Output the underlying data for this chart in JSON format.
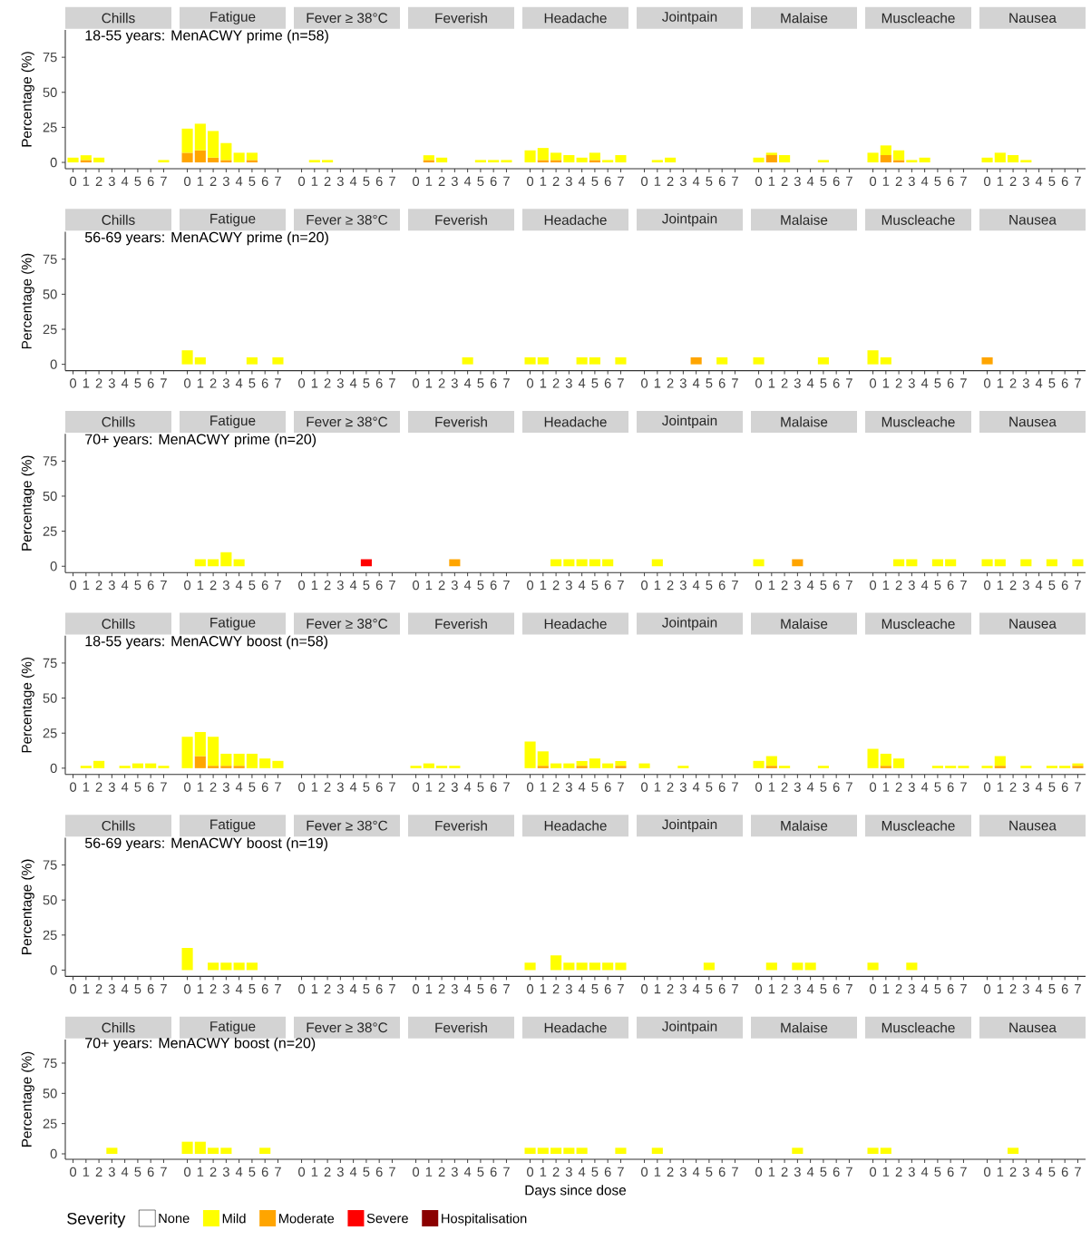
{
  "chart_data": [
    {
      "type": "bar",
      "stacked": true,
      "title": "18-55 years: MenACWY prime (n=58)",
      "ylabel": "Percentage (%)",
      "annotations": [
        "Chills",
        "Fatigue",
        "Fever ≥ 38°C",
        "Feverish",
        "Headache",
        "Jointpain",
        "Malaise",
        "Muscleache",
        "Nausea"
      ],
      "categories": [
        "0",
        "1",
        "2",
        "3",
        "4",
        "5",
        "6",
        "7",
        "0",
        "1",
        "2",
        "3",
        "4",
        "5",
        "6",
        "7",
        "0",
        "1",
        "2",
        "3",
        "4",
        "5",
        "6",
        "7",
        "0",
        "1",
        "2",
        "3",
        "4",
        "5",
        "6",
        "7",
        "0",
        "1",
        "2",
        "3",
        "4",
        "5",
        "6",
        "7",
        "0",
        "1",
        "2",
        "3",
        "4",
        "5",
        "6",
        "7",
        "0",
        "1",
        "2",
        "3",
        "4",
        "5",
        "6",
        "7",
        "0",
        "1",
        "2",
        "3",
        "4",
        "5",
        "6",
        "7",
        "0",
        "1",
        "2",
        "3",
        "4",
        "5",
        "6",
        "7"
      ],
      "ylim": [
        -4.5,
        94.5
      ],
      "yticks": [
        0,
        25,
        50,
        75
      ],
      "series": [
        {
          "color": "#ffa500",
          "values": [
            null,
            1.7,
            null,
            null,
            null,
            null,
            null,
            null,
            6.9,
            8.6,
            3.4,
            1.7,
            null,
            1.7,
            null,
            null,
            null,
            null,
            null,
            null,
            null,
            null,
            null,
            null,
            null,
            1.7,
            null,
            null,
            null,
            null,
            null,
            null,
            null,
            1.7,
            1.7,
            null,
            null,
            1.7,
            null,
            null,
            null,
            null,
            null,
            null,
            null,
            null,
            null,
            null,
            null,
            5.2,
            null,
            null,
            null,
            null,
            null,
            null,
            null,
            5.2,
            1.7,
            null,
            null,
            null,
            null,
            null,
            null,
            null,
            null,
            null,
            null,
            null,
            null,
            null
          ]
        },
        {
          "color": "#ffff00",
          "values": [
            3.4,
            3.4,
            3.4,
            null,
            null,
            null,
            null,
            1.7,
            17.2,
            19.0,
            19.0,
            12.1,
            6.9,
            5.2,
            null,
            null,
            null,
            1.7,
            1.7,
            null,
            null,
            null,
            null,
            null,
            null,
            3.4,
            3.4,
            null,
            null,
            1.7,
            1.7,
            1.7,
            8.6,
            8.6,
            5.2,
            5.2,
            3.4,
            5.2,
            1.7,
            5.2,
            null,
            1.7,
            3.4,
            null,
            null,
            null,
            null,
            null,
            3.4,
            1.7,
            5.2,
            null,
            null,
            1.7,
            null,
            null,
            6.9,
            6.9,
            6.9,
            1.7,
            3.4,
            null,
            null,
            null,
            3.4,
            6.9,
            5.2,
            1.7,
            null,
            null,
            null,
            null
          ]
        }
      ]
    },
    {
      "type": "bar",
      "stacked": true,
      "title": "56-69 years: MenACWY prime (n=20)",
      "ylabel": "Percentage (%)",
      "annotations": [
        "Chills",
        "Fatigue",
        "Fever ≥ 38°C",
        "Feverish",
        "Headache",
        "Jointpain",
        "Malaise",
        "Muscleache",
        "Nausea"
      ],
      "categories": [
        "0",
        "1",
        "2",
        "3",
        "4",
        "5",
        "6",
        "7",
        "0",
        "1",
        "2",
        "3",
        "4",
        "5",
        "6",
        "7",
        "0",
        "1",
        "2",
        "3",
        "4",
        "5",
        "6",
        "7",
        "0",
        "1",
        "2",
        "3",
        "4",
        "5",
        "6",
        "7",
        "0",
        "1",
        "2",
        "3",
        "4",
        "5",
        "6",
        "7",
        "0",
        "1",
        "2",
        "3",
        "4",
        "5",
        "6",
        "7",
        "0",
        "1",
        "2",
        "3",
        "4",
        "5",
        "6",
        "7",
        "0",
        "1",
        "2",
        "3",
        "4",
        "5",
        "6",
        "7",
        "0",
        "1",
        "2",
        "3",
        "4",
        "5",
        "6",
        "7"
      ],
      "ylim": [
        -4.5,
        94.5
      ],
      "yticks": [
        0,
        25,
        50,
        75
      ],
      "series": [
        {
          "color": "#ffa500",
          "values": [
            null,
            null,
            null,
            null,
            null,
            null,
            null,
            null,
            null,
            null,
            null,
            null,
            null,
            null,
            null,
            null,
            null,
            null,
            null,
            null,
            null,
            null,
            null,
            null,
            null,
            null,
            null,
            null,
            null,
            null,
            null,
            null,
            null,
            null,
            null,
            null,
            null,
            null,
            null,
            null,
            null,
            null,
            null,
            null,
            5,
            null,
            null,
            null,
            null,
            null,
            null,
            null,
            null,
            null,
            null,
            null,
            null,
            null,
            null,
            null,
            null,
            null,
            null,
            null,
            5,
            null,
            null,
            null,
            null,
            null,
            null,
            null
          ]
        },
        {
          "color": "#ffff00",
          "values": [
            null,
            null,
            null,
            null,
            null,
            null,
            null,
            null,
            10,
            5,
            null,
            null,
            null,
            5,
            null,
            5,
            null,
            null,
            null,
            null,
            null,
            null,
            null,
            null,
            null,
            null,
            null,
            null,
            5,
            null,
            null,
            null,
            5,
            5,
            null,
            null,
            5,
            5,
            null,
            5,
            null,
            null,
            null,
            null,
            null,
            null,
            5,
            null,
            5,
            null,
            null,
            null,
            null,
            5,
            null,
            null,
            10,
            5,
            null,
            null,
            null,
            null,
            null,
            null,
            null,
            null,
            null,
            null,
            null,
            null,
            null,
            null
          ]
        }
      ]
    },
    {
      "type": "bar",
      "stacked": true,
      "title": "70+ years: MenACWY prime (n=20)",
      "ylabel": "Percentage (%)",
      "annotations": [
        "Chills",
        "Fatigue",
        "Fever ≥ 38°C",
        "Feverish",
        "Headache",
        "Jointpain",
        "Malaise",
        "Muscleache",
        "Nausea"
      ],
      "categories": [
        "0",
        "1",
        "2",
        "3",
        "4",
        "5",
        "6",
        "7",
        "0",
        "1",
        "2",
        "3",
        "4",
        "5",
        "6",
        "7",
        "0",
        "1",
        "2",
        "3",
        "4",
        "5",
        "6",
        "7",
        "0",
        "1",
        "2",
        "3",
        "4",
        "5",
        "6",
        "7",
        "0",
        "1",
        "2",
        "3",
        "4",
        "5",
        "6",
        "7",
        "0",
        "1",
        "2",
        "3",
        "4",
        "5",
        "6",
        "7",
        "0",
        "1",
        "2",
        "3",
        "4",
        "5",
        "6",
        "7",
        "0",
        "1",
        "2",
        "3",
        "4",
        "5",
        "6",
        "7",
        "0",
        "1",
        "2",
        "3",
        "4",
        "5",
        "6",
        "7"
      ],
      "ylim": [
        -4.5,
        94.5
      ],
      "yticks": [
        0,
        25,
        50,
        75
      ],
      "series": [
        {
          "color": "#ff0000",
          "values": [
            null,
            null,
            null,
            null,
            null,
            null,
            null,
            null,
            null,
            null,
            null,
            null,
            null,
            null,
            null,
            null,
            null,
            null,
            null,
            null,
            null,
            5,
            null,
            null,
            null,
            null,
            null,
            null,
            null,
            null,
            null,
            null,
            null,
            null,
            null,
            null,
            null,
            null,
            null,
            null,
            null,
            null,
            null,
            null,
            null,
            null,
            null,
            null,
            null,
            null,
            null,
            null,
            null,
            null,
            null,
            null,
            null,
            null,
            null,
            null,
            null,
            null,
            null,
            null,
            null,
            null,
            null,
            null,
            null,
            null,
            null,
            null
          ]
        },
        {
          "color": "#ffa500",
          "values": [
            null,
            null,
            null,
            null,
            null,
            null,
            null,
            null,
            null,
            null,
            null,
            null,
            null,
            null,
            null,
            null,
            null,
            null,
            null,
            null,
            null,
            null,
            null,
            null,
            null,
            null,
            null,
            5,
            null,
            null,
            null,
            null,
            null,
            null,
            null,
            null,
            null,
            null,
            null,
            null,
            null,
            null,
            null,
            null,
            null,
            null,
            null,
            null,
            null,
            null,
            null,
            5,
            null,
            null,
            null,
            null,
            null,
            null,
            null,
            null,
            null,
            null,
            null,
            null,
            null,
            null,
            null,
            null,
            null,
            null,
            null,
            null
          ]
        },
        {
          "color": "#ffff00",
          "values": [
            null,
            null,
            null,
            null,
            null,
            null,
            null,
            null,
            null,
            5,
            5,
            10,
            5,
            null,
            null,
            null,
            null,
            null,
            null,
            null,
            null,
            null,
            null,
            null,
            null,
            null,
            null,
            null,
            null,
            null,
            null,
            null,
            null,
            null,
            5,
            5,
            5,
            5,
            5,
            null,
            null,
            5,
            null,
            null,
            null,
            null,
            null,
            null,
            5,
            null,
            null,
            null,
            null,
            null,
            null,
            null,
            null,
            null,
            5,
            5,
            null,
            5,
            5,
            null,
            5,
            5,
            null,
            5,
            null,
            5,
            null,
            5
          ]
        }
      ]
    },
    {
      "type": "bar",
      "stacked": true,
      "title": "18-55 years: MenACWY boost (n=58)",
      "ylabel": "Percentage (%)",
      "annotations": [
        "Chills",
        "Fatigue",
        "Fever ≥ 38°C",
        "Feverish",
        "Headache",
        "Jointpain",
        "Malaise",
        "Muscleache",
        "Nausea"
      ],
      "categories": [
        "0",
        "1",
        "2",
        "3",
        "4",
        "5",
        "6",
        "7",
        "0",
        "1",
        "2",
        "3",
        "4",
        "5",
        "6",
        "7",
        "0",
        "1",
        "2",
        "3",
        "4",
        "5",
        "6",
        "7",
        "0",
        "1",
        "2",
        "3",
        "4",
        "5",
        "6",
        "7",
        "0",
        "1",
        "2",
        "3",
        "4",
        "5",
        "6",
        "7",
        "0",
        "1",
        "2",
        "3",
        "4",
        "5",
        "6",
        "7",
        "0",
        "1",
        "2",
        "3",
        "4",
        "5",
        "6",
        "7",
        "0",
        "1",
        "2",
        "3",
        "4",
        "5",
        "6",
        "7",
        "0",
        "1",
        "2",
        "3",
        "4",
        "5",
        "6",
        "7"
      ],
      "ylim": [
        -4.5,
        94.5
      ],
      "yticks": [
        0,
        25,
        50,
        75
      ],
      "series": [
        {
          "color": "#ffa500",
          "values": [
            null,
            null,
            null,
            null,
            null,
            null,
            null,
            null,
            null,
            8.6,
            1.7,
            1.7,
            1.7,
            null,
            null,
            null,
            null,
            null,
            null,
            null,
            null,
            null,
            null,
            null,
            null,
            null,
            null,
            null,
            null,
            null,
            null,
            null,
            null,
            1.7,
            null,
            null,
            1.7,
            null,
            null,
            1.7,
            null,
            null,
            null,
            null,
            null,
            null,
            null,
            null,
            null,
            1.7,
            null,
            null,
            null,
            null,
            null,
            null,
            null,
            1.7,
            null,
            null,
            null,
            null,
            null,
            null,
            null,
            1.7,
            null,
            null,
            null,
            null,
            null,
            1.7
          ]
        },
        {
          "color": "#ffff00",
          "values": [
            null,
            1.7,
            5.2,
            null,
            1.7,
            3.4,
            3.4,
            1.7,
            22.4,
            17.2,
            20.7,
            8.6,
            8.6,
            10.3,
            6.9,
            5.2,
            null,
            null,
            null,
            null,
            null,
            null,
            null,
            null,
            1.7,
            3.4,
            1.7,
            1.7,
            null,
            null,
            null,
            null,
            19.0,
            10.3,
            3.4,
            3.4,
            3.4,
            6.9,
            3.4,
            3.4,
            3.4,
            null,
            null,
            1.7,
            null,
            null,
            null,
            null,
            5.2,
            6.9,
            1.7,
            null,
            null,
            1.7,
            null,
            null,
            13.8,
            8.6,
            6.9,
            null,
            null,
            1.7,
            1.7,
            1.7,
            1.7,
            6.9,
            null,
            1.7,
            null,
            1.7,
            1.7,
            1.7
          ]
        }
      ]
    },
    {
      "type": "bar",
      "stacked": true,
      "title": "56-69 years: MenACWY boost (n=19)",
      "ylabel": "Percentage (%)",
      "annotations": [
        "Chills",
        "Fatigue",
        "Fever ≥ 38°C",
        "Feverish",
        "Headache",
        "Jointpain",
        "Malaise",
        "Muscleache",
        "Nausea"
      ],
      "categories": [
        "0",
        "1",
        "2",
        "3",
        "4",
        "5",
        "6",
        "7",
        "0",
        "1",
        "2",
        "3",
        "4",
        "5",
        "6",
        "7",
        "0",
        "1",
        "2",
        "3",
        "4",
        "5",
        "6",
        "7",
        "0",
        "1",
        "2",
        "3",
        "4",
        "5",
        "6",
        "7",
        "0",
        "1",
        "2",
        "3",
        "4",
        "5",
        "6",
        "7",
        "0",
        "1",
        "2",
        "3",
        "4",
        "5",
        "6",
        "7",
        "0",
        "1",
        "2",
        "3",
        "4",
        "5",
        "6",
        "7",
        "0",
        "1",
        "2",
        "3",
        "4",
        "5",
        "6",
        "7",
        "0",
        "1",
        "2",
        "3",
        "4",
        "5",
        "6",
        "7"
      ],
      "ylim": [
        -4.5,
        94.5
      ],
      "yticks": [
        0,
        25,
        50,
        75
      ],
      "series": [
        {
          "color": "#ffff00",
          "values": [
            null,
            null,
            null,
            null,
            null,
            null,
            null,
            null,
            15.8,
            null,
            5.3,
            5.3,
            5.3,
            5.3,
            null,
            null,
            null,
            null,
            null,
            null,
            null,
            null,
            null,
            null,
            null,
            null,
            null,
            null,
            null,
            null,
            null,
            null,
            5.3,
            null,
            10.5,
            5.3,
            5.3,
            5.3,
            5.3,
            5.3,
            null,
            null,
            null,
            null,
            null,
            5.3,
            null,
            null,
            null,
            5.3,
            null,
            5.3,
            5.3,
            null,
            null,
            null,
            5.3,
            null,
            null,
            5.3,
            null,
            null,
            null,
            null,
            null,
            null,
            null,
            null,
            null,
            null,
            null,
            null
          ]
        }
      ]
    },
    {
      "type": "bar",
      "stacked": true,
      "title": "70+ years: MenACWY boost (n=20)",
      "ylabel": "Percentage (%)",
      "xlabel": "Days since dose",
      "legend": "bottom",
      "legend_title": "Severity",
      "annotations": [
        "Chills",
        "Fatigue",
        "Fever ≥ 38°C",
        "Feverish",
        "Headache",
        "Jointpain",
        "Malaise",
        "Muscleache",
        "Nausea"
      ],
      "categories": [
        "0",
        "1",
        "2",
        "3",
        "4",
        "5",
        "6",
        "7",
        "0",
        "1",
        "2",
        "3",
        "4",
        "5",
        "6",
        "7",
        "0",
        "1",
        "2",
        "3",
        "4",
        "5",
        "6",
        "7",
        "0",
        "1",
        "2",
        "3",
        "4",
        "5",
        "6",
        "7",
        "0",
        "1",
        "2",
        "3",
        "4",
        "5",
        "6",
        "7",
        "0",
        "1",
        "2",
        "3",
        "4",
        "5",
        "6",
        "7",
        "0",
        "1",
        "2",
        "3",
        "4",
        "5",
        "6",
        "7",
        "0",
        "1",
        "2",
        "3",
        "4",
        "5",
        "6",
        "7",
        "0",
        "1",
        "2",
        "3",
        "4",
        "5",
        "6",
        "7"
      ],
      "ylim": [
        -4.5,
        94.5
      ],
      "yticks": [
        0,
        25,
        50,
        75
      ],
      "series": [
        {
          "name": "Hospitalisation",
          "color": "#8b0000",
          "values": [
            null,
            null,
            null,
            null,
            null,
            null,
            null,
            null,
            null,
            null,
            null,
            null,
            null,
            null,
            null,
            null,
            null,
            null,
            null,
            null,
            null,
            null,
            null,
            null,
            null,
            null,
            null,
            null,
            null,
            null,
            null,
            null,
            null,
            null,
            null,
            null,
            null,
            null,
            null,
            null,
            null,
            null,
            null,
            null,
            null,
            null,
            null,
            null,
            null,
            null,
            null,
            null,
            null,
            null,
            null,
            null,
            null,
            null,
            null,
            null,
            null,
            null,
            null,
            null,
            null,
            null,
            null,
            null,
            null,
            null,
            null,
            null
          ]
        },
        {
          "name": "Severe",
          "color": "#ff0000",
          "values": [
            null,
            null,
            null,
            null,
            null,
            null,
            null,
            null,
            null,
            null,
            null,
            null,
            null,
            null,
            null,
            null,
            null,
            null,
            null,
            null,
            null,
            null,
            null,
            null,
            null,
            null,
            null,
            null,
            null,
            null,
            null,
            null,
            null,
            null,
            null,
            null,
            null,
            null,
            null,
            null,
            null,
            null,
            null,
            null,
            null,
            null,
            null,
            null,
            null,
            null,
            null,
            null,
            null,
            null,
            null,
            null,
            null,
            null,
            null,
            null,
            null,
            null,
            null,
            null,
            null,
            null,
            null,
            null,
            null,
            null,
            null,
            null
          ]
        },
        {
          "name": "Moderate",
          "color": "#ffa500",
          "values": [
            null,
            null,
            null,
            null,
            null,
            null,
            null,
            null,
            null,
            null,
            null,
            null,
            null,
            null,
            null,
            null,
            null,
            null,
            null,
            null,
            null,
            null,
            null,
            null,
            null,
            null,
            null,
            null,
            null,
            null,
            null,
            null,
            null,
            null,
            null,
            null,
            null,
            null,
            null,
            null,
            null,
            null,
            null,
            null,
            null,
            null,
            null,
            null,
            null,
            null,
            null,
            null,
            null,
            null,
            null,
            null,
            null,
            null,
            null,
            null,
            null,
            null,
            null,
            null,
            null,
            null,
            null,
            null,
            null,
            null,
            null,
            null
          ]
        },
        {
          "name": "Mild",
          "color": "#ffff00",
          "values": [
            null,
            null,
            null,
            5,
            null,
            null,
            null,
            null,
            10,
            10,
            5,
            5,
            null,
            null,
            5,
            null,
            null,
            null,
            null,
            null,
            null,
            null,
            null,
            null,
            null,
            null,
            null,
            null,
            null,
            null,
            null,
            null,
            5,
            5,
            5,
            5,
            5,
            null,
            null,
            5,
            null,
            5,
            null,
            null,
            null,
            null,
            null,
            null,
            null,
            null,
            null,
            5,
            null,
            null,
            null,
            null,
            5,
            5,
            null,
            null,
            null,
            null,
            null,
            null,
            null,
            null,
            5,
            null,
            null,
            null,
            null,
            null
          ]
        },
        {
          "name": "None",
          "values": [
            null,
            null,
            null,
            null,
            null,
            null,
            null,
            null,
            null,
            null,
            null,
            null,
            null,
            null,
            null,
            null,
            null,
            null,
            null,
            null,
            null,
            null,
            null,
            null,
            null,
            null,
            null,
            null,
            null,
            null,
            null,
            null,
            null,
            null,
            null,
            null,
            null,
            null,
            null,
            null,
            null,
            null,
            null,
            null,
            null,
            null,
            null,
            null,
            null,
            null,
            null,
            null,
            null,
            null,
            null,
            null,
            null,
            null,
            null,
            null,
            null,
            null,
            null,
            null,
            null,
            null,
            null,
            null,
            null,
            null,
            null,
            null
          ]
        }
      ]
    }
  ]
}
